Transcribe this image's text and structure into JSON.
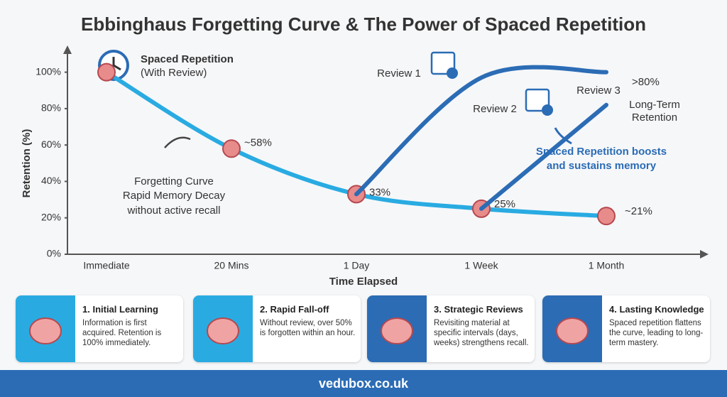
{
  "chart_data": {
    "type": "line",
    "title": "Ebbinghaus Forgetting Curve & The Power of Spaced Repetition",
    "xlabel": "Time Elapsed",
    "ylabel": "Retention (%)",
    "categories": [
      "Immediate",
      "20 Mins",
      "1 Day",
      "1 Week",
      "1 Month"
    ],
    "ylim": [
      0,
      110
    ],
    "yticks": [
      {
        "value": 0,
        "label": "0%"
      },
      {
        "value": 20,
        "label": "20%"
      },
      {
        "value": 40,
        "label": "40%"
      },
      {
        "value": 60,
        "label": "60%"
      },
      {
        "value": 80,
        "label": "80%"
      },
      {
        "value": 100,
        "label": "100%"
      }
    ],
    "legend": {
      "title": "Spaced Repetition",
      "subtitle": "(With Review)"
    },
    "series": [
      {
        "name": "Forgetting Curve",
        "color": "#29abe2",
        "values": [
          100,
          58,
          33,
          25,
          21
        ],
        "value_labels": [
          null,
          "~58%",
          "33%",
          "25%",
          "~21%"
        ]
      },
      {
        "name": "Review 1",
        "color": "#2b6cb5",
        "values": [
          null,
          null,
          33,
          97,
          100
        ]
      },
      {
        "name": "Review 2",
        "color": "#2b6cb5",
        "values": [
          null,
          null,
          null,
          25,
          82
        ],
        "value_labels": [
          null,
          null,
          null,
          null,
          ">80%"
        ]
      }
    ],
    "annotations": [
      "Rapid Memory Decay",
      "without active recall",
      "Review 3",
      "Long-Term",
      "Retention",
      "Spaced Repetition boosts",
      "and sustains memory"
    ]
  },
  "cards": [
    {
      "title": "1. Initial Learning",
      "text": "Information is first acquired. Retention is 100% immediately."
    },
    {
      "title": "2. Rapid Fall-off",
      "text": "Without review, over 50% is forgotten within an hour."
    },
    {
      "title": "3. Strategic Reviews",
      "text": "Revisiting material at specific intervals (days, weeks) strengthens recall."
    },
    {
      "title": "4. Lasting Knowledge",
      "text": "Spaced repetition flattens the curve, leading to long-term mastery."
    }
  ],
  "footer": "vedubox.co.uk"
}
